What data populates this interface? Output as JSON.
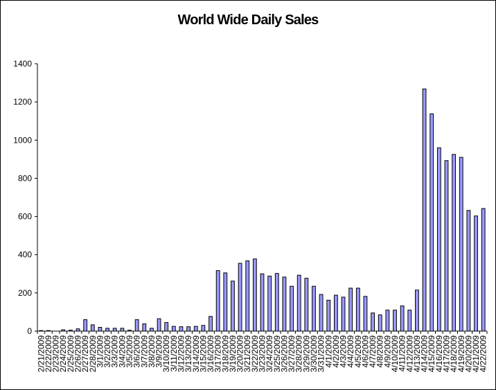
{
  "chart_data": {
    "type": "bar",
    "title": "World Wide Daily Sales",
    "xlabel": "",
    "ylabel": "",
    "ylim": [
      0,
      1400
    ],
    "yticks": [
      "0",
      "200",
      "400",
      "600",
      "800",
      "1000",
      "1200",
      "1400"
    ],
    "grid": false,
    "legend": "none",
    "bar_color": "#9999ff",
    "categories": [
      "2/21/2009",
      "2/22/2009",
      "2/23/2009",
      "2/24/2009",
      "2/25/2009",
      "2/26/2009",
      "2/27/2009",
      "2/28/2009",
      "3/1/2009",
      "3/2/2009",
      "3/3/2009",
      "3/4/2009",
      "3/5/2009",
      "3/6/2009",
      "3/7/2009",
      "3/8/2009",
      "3/9/2009",
      "3/10/2009",
      "3/11/2009",
      "3/12/2009",
      "3/13/2009",
      "3/14/2009",
      "3/15/2009",
      "3/16/2009",
      "3/17/2009",
      "3/18/2009",
      "3/19/2009",
      "3/20/2009",
      "3/21/2009",
      "3/22/2009",
      "3/23/2009",
      "3/24/2009",
      "3/25/2009",
      "3/26/2009",
      "3/27/2009",
      "3/28/2009",
      "3/29/2009",
      "3/30/2009",
      "3/31/2009",
      "4/1/2009",
      "4/2/2009",
      "4/3/2009",
      "4/4/2009",
      "4/5/2009",
      "4/6/2009",
      "4/7/2009",
      "4/8/2009",
      "4/9/2009",
      "4/10/2009",
      "4/11/2009",
      "4/12/2009",
      "4/13/2009",
      "4/14/2009",
      "4/15/2009",
      "4/16/2009",
      "4/17/2009",
      "4/18/2009",
      "4/19/2009",
      "4/20/2009",
      "4/21/2009",
      "4/22/2009"
    ],
    "values": [
      3,
      3,
      0,
      7,
      5,
      12,
      60,
      33,
      20,
      15,
      15,
      15,
      5,
      60,
      38,
      15,
      65,
      45,
      25,
      23,
      23,
      25,
      30,
      77,
      317,
      305,
      262,
      355,
      368,
      378,
      300,
      288,
      302,
      283,
      235,
      293,
      277,
      235,
      192,
      162,
      188,
      178,
      225,
      225,
      182,
      95,
      85,
      110,
      110,
      132,
      110,
      215,
      1268,
      1138,
      960,
      893,
      925,
      910,
      632,
      603,
      642
    ]
  }
}
